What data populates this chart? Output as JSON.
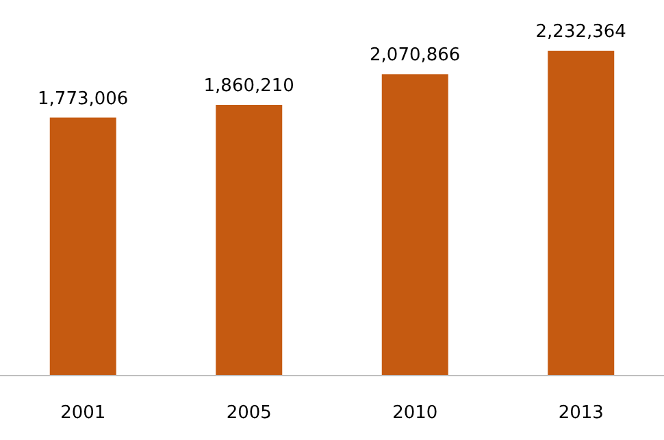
{
  "chart_data": {
    "type": "bar",
    "categories": [
      "2001",
      "2005",
      "2010",
      "2013"
    ],
    "series": [
      {
        "color": "#c55a11",
        "values": [
          1773006,
          1860210,
          2070866,
          2232364
        ],
        "value_labels": [
          "1,773,006",
          "1,860,210",
          "2,070,866",
          "2,232,364"
        ]
      }
    ]
  }
}
